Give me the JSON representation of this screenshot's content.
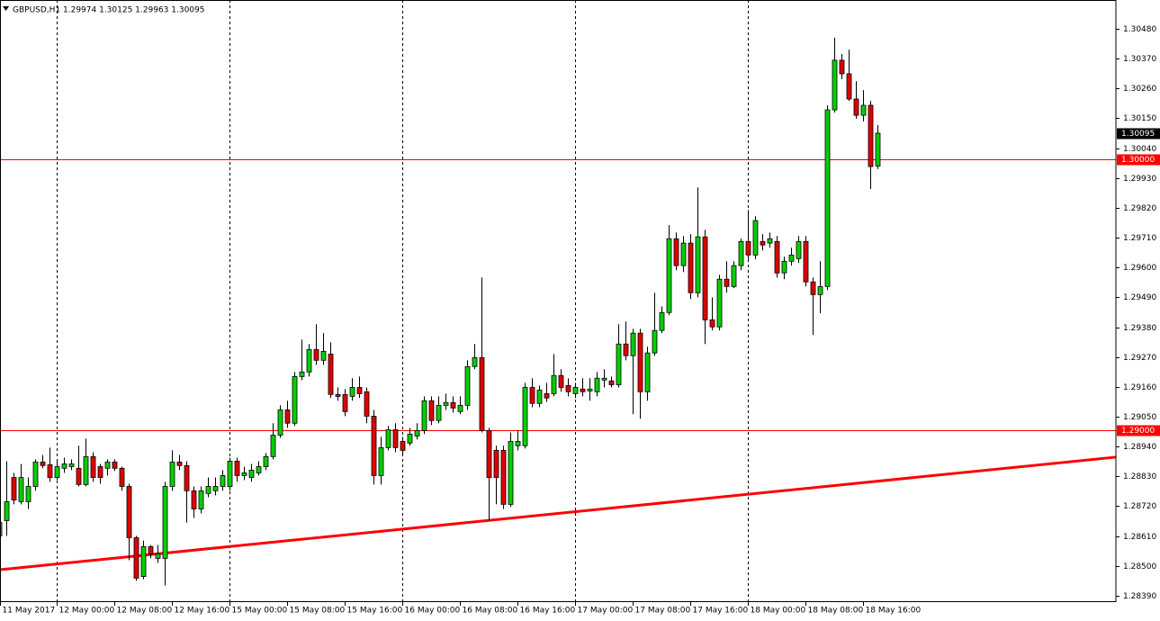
{
  "chart_data": {
    "type": "candlestick",
    "title": "GBPUSD,H1  1.29974 1.30125 1.29963 1.30095",
    "categories": [
      "11 May 2017",
      null,
      null,
      null,
      null,
      null,
      null,
      null,
      "12 May 00:00",
      null,
      null,
      null,
      null,
      null,
      null,
      null,
      "12 May 08:00",
      null,
      null,
      null,
      null,
      null,
      null,
      null,
      "12 May 16:00",
      null,
      null,
      null,
      null,
      null,
      null,
      null,
      "15 May 00:00",
      null,
      null,
      null,
      null,
      null,
      null,
      null,
      "15 May 08:00",
      null,
      null,
      null,
      null,
      null,
      null,
      null,
      "15 May 16:00",
      null,
      null,
      null,
      null,
      null,
      null,
      null,
      "16 May 00:00",
      null,
      null,
      null,
      null,
      null,
      null,
      null,
      "16 May 08:00",
      null,
      null,
      null,
      null,
      null,
      null,
      null,
      "16 May 16:00",
      null,
      null,
      null,
      null,
      null,
      null,
      null,
      "17 May 00:00",
      null,
      null,
      null,
      null,
      null,
      null,
      null,
      "17 May 08:00",
      null,
      null,
      null,
      null,
      null,
      null,
      null,
      "17 May 16:00",
      null,
      null,
      null,
      null,
      null,
      null,
      null,
      "18 May 00:00",
      null,
      null,
      null,
      null,
      null,
      null,
      null,
      "18 May 08:00",
      null,
      null,
      null,
      null,
      null,
      null,
      null,
      "18 May 16:00",
      null,
      null
    ],
    "open": [
      1.28611,
      1.28667,
      1.28826,
      1.28737,
      1.28737,
      1.28793,
      1.28883,
      1.28873,
      1.28826,
      1.2886,
      1.28866,
      1.2886,
      1.288,
      1.28903,
      1.28866,
      1.2886,
      1.28883,
      1.2886,
      1.28793,
      1.28604,
      1.28461,
      1.28571,
      1.28528,
      1.28528,
      1.28793,
      1.28883,
      1.2887,
      1.28777,
      1.2871,
      1.28767,
      1.28777,
      1.28793,
      1.28793,
      1.28886,
      1.28833,
      1.28826,
      1.28843,
      1.28866,
      1.28903,
      1.28982,
      1.29075,
      1.29026,
      1.29198,
      1.29215,
      1.29298,
      1.29258,
      1.29281,
      1.29132,
      1.29132,
      1.29125,
      1.29158,
      1.29142,
      1.29052,
      1.28833,
      1.28936,
      1.29002,
      1.28959,
      1.28953,
      1.28979,
      1.28999,
      1.29109,
      1.29036,
      1.29092,
      1.29102,
      1.29069,
      1.29092,
      1.29235,
      1.29268,
      1.28999,
      1.28926,
      1.28926,
      1.28727,
      1.28943,
      1.28943,
      1.29158,
      1.29099,
      1.29135,
      1.29135,
      1.29202,
      1.29165,
      1.29135,
      1.29152,
      1.29145,
      1.29142,
      1.29185,
      1.29182,
      1.29168,
      1.29318,
      1.29275,
      1.29358,
      1.29142,
      1.29285,
      1.29368,
      1.29434,
      1.29706,
      1.29607,
      1.2969,
      1.29507,
      1.29713,
      1.29407,
      1.29381,
      1.29557,
      1.2953,
      1.29607,
      1.29696,
      1.29646,
      1.29696,
      1.2969,
      1.29696,
      1.2958,
      1.29623,
      1.29633,
      1.29696,
      1.29547,
      1.295,
      1.2953,
      1.30181,
      1.30364,
      1.30314,
      1.30221,
      1.30161,
      1.30198,
      1.29974
    ],
    "high": [
      1.28687,
      1.28886,
      1.28843,
      1.28876,
      1.28826,
      1.28893,
      1.28909,
      1.28936,
      1.28886,
      1.28899,
      1.28893,
      1.28943,
      1.28969,
      1.28919,
      1.28876,
      1.28893,
      1.28893,
      1.28866,
      1.28803,
      1.28611,
      1.28594,
      1.28577,
      1.28577,
      1.2881,
      1.28926,
      1.28909,
      1.28886,
      1.28793,
      1.28793,
      1.28826,
      1.28826,
      1.28853,
      1.28899,
      1.28899,
      1.28866,
      1.28876,
      1.28886,
      1.28916,
      1.29026,
      1.29092,
      1.29109,
      1.29215,
      1.29334,
      1.29318,
      1.29391,
      1.29358,
      1.29324,
      1.29158,
      1.29152,
      1.29192,
      1.29198,
      1.29158,
      1.29075,
      1.28976,
      1.29016,
      1.29026,
      1.28976,
      1.29009,
      1.29026,
      1.29125,
      1.29125,
      1.29125,
      1.29135,
      1.29125,
      1.29125,
      1.29258,
      1.29318,
      1.29563,
      1.29009,
      1.28943,
      1.28943,
      1.28992,
      1.28999,
      1.29175,
      1.29192,
      1.29165,
      1.29175,
      1.29281,
      1.29225,
      1.29192,
      1.29175,
      1.29192,
      1.29192,
      1.29215,
      1.29225,
      1.29198,
      1.29391,
      1.29401,
      1.29374,
      1.29374,
      1.29308,
      1.29507,
      1.29457,
      1.29756,
      1.29729,
      1.29716,
      1.29723,
      1.29895,
      1.29739,
      1.2949,
      1.29573,
      1.29623,
      1.29623,
      1.29706,
      1.29812,
      1.29789,
      1.29723,
      1.29729,
      1.29716,
      1.2964,
      1.29673,
      1.29716,
      1.29716,
      1.29563,
      1.29623,
      1.30198,
      1.30447,
      1.30387,
      1.30403,
      1.30287,
      1.30254,
      1.30214,
      1.30125
    ],
    "low": [
      1.28594,
      1.28611,
      1.28727,
      1.28727,
      1.2871,
      1.28777,
      1.2886,
      1.2881,
      1.28816,
      1.28843,
      1.28853,
      1.28793,
      1.28793,
      1.2881,
      1.28803,
      1.28833,
      1.2885,
      1.28777,
      1.28521,
      1.28445,
      1.28451,
      1.28528,
      1.28511,
      1.28428,
      1.28777,
      1.28853,
      1.2866,
      1.28677,
      1.28694,
      1.28753,
      1.2876,
      1.28777,
      1.28777,
      1.2881,
      1.28816,
      1.2881,
      1.28833,
      1.28853,
      1.28893,
      1.28972,
      1.29009,
      1.29016,
      1.29185,
      1.29198,
      1.29241,
      1.29241,
      1.29119,
      1.29109,
      1.29052,
      1.29109,
      1.29119,
      1.29026,
      1.288,
      1.288,
      1.28926,
      1.28919,
      1.28909,
      1.28943,
      1.28966,
      1.28986,
      1.29019,
      1.29026,
      1.29075,
      1.29065,
      1.29059,
      1.29075,
      1.29225,
      1.28992,
      1.28667,
      1.28727,
      1.2871,
      1.28717,
      1.28926,
      1.28933,
      1.29085,
      1.29085,
      1.29105,
      1.29125,
      1.29142,
      1.29125,
      1.29119,
      1.29125,
      1.29109,
      1.29125,
      1.29158,
      1.29158,
      1.29158,
      1.29258,
      1.29059,
      1.29042,
      1.29109,
      1.29275,
      1.29358,
      1.29424,
      1.2959,
      1.29583,
      1.29484,
      1.2949,
      1.29318,
      1.29368,
      1.29368,
      1.29507,
      1.29524,
      1.2959,
      1.2963,
      1.2963,
      1.29663,
      1.29673,
      1.29563,
      1.29557,
      1.29607,
      1.29617,
      1.2953,
      1.29351,
      1.29431,
      1.29517,
      1.30171,
      1.30294,
      1.30214,
      1.30148,
      1.30138,
      1.29889,
      1.29963
    ],
    "close": [
      1.2866,
      1.28737,
      1.28743,
      1.28826,
      1.28793,
      1.28883,
      1.2887,
      1.28826,
      1.28866,
      1.28876,
      1.28876,
      1.288,
      1.28903,
      1.28826,
      1.28826,
      1.28883,
      1.2886,
      1.28793,
      1.28604,
      1.28455,
      1.28571,
      1.28544,
      1.28544,
      1.28793,
      1.28883,
      1.2887,
      1.28777,
      1.2871,
      1.28777,
      1.28793,
      1.28793,
      1.28833,
      1.28886,
      1.28833,
      1.28843,
      1.28853,
      1.28866,
      1.28903,
      1.28982,
      1.29075,
      1.29026,
      1.29198,
      1.29215,
      1.29298,
      1.29258,
      1.29291,
      1.29132,
      1.29125,
      1.29069,
      1.29158,
      1.29135,
      1.29052,
      1.28833,
      1.28936,
      1.29002,
      1.28936,
      1.28926,
      1.28986,
      1.28999,
      1.29109,
      1.29036,
      1.29092,
      1.29102,
      1.29082,
      1.29092,
      1.29235,
      1.29268,
      1.28999,
      1.28826,
      1.28826,
      1.28727,
      1.28959,
      1.28959,
      1.29158,
      1.29099,
      1.29148,
      1.29119,
      1.29202,
      1.29158,
      1.29142,
      1.29158,
      1.29142,
      1.29152,
      1.29192,
      1.29192,
      1.29168,
      1.29318,
      1.29275,
      1.29358,
      1.29142,
      1.29285,
      1.29368,
      1.29434,
      1.29706,
      1.29607,
      1.2969,
      1.29507,
      1.29713,
      1.29407,
      1.29381,
      1.29557,
      1.2953,
      1.29607,
      1.29696,
      1.29646,
      1.29773,
      1.29683,
      1.29706,
      1.2958,
      1.29623,
      1.29646,
      1.29696,
      1.29547,
      1.295,
      1.2953,
      1.30181,
      1.30364,
      1.30314,
      1.30221,
      1.30161,
      1.30198,
      1.29972,
      1.30095
    ],
    "up_color": "#00d000",
    "down_color": "#e00000",
    "wick_color": "#000000",
    "ylim": [
      1.2837,
      1.30586
    ],
    "yticks": [
      {
        "value": 1.3048,
        "label": "1.30480"
      },
      {
        "value": 1.3037,
        "label": "1.30370"
      },
      {
        "value": 1.3026,
        "label": "1.30260"
      },
      {
        "value": 1.3015,
        "label": "1.30150"
      },
      {
        "value": 1.3004,
        "label": "1.30040"
      },
      {
        "value": 1.2993,
        "label": "1.29930"
      },
      {
        "value": 1.2982,
        "label": "1.29820"
      },
      {
        "value": 1.2971,
        "label": "1.29710"
      },
      {
        "value": 1.296,
        "label": "1.29600"
      },
      {
        "value": 1.2949,
        "label": "1.29490"
      },
      {
        "value": 1.2938,
        "label": "1.29380"
      },
      {
        "value": 1.2927,
        "label": "1.29270"
      },
      {
        "value": 1.2916,
        "label": "1.29160"
      },
      {
        "value": 1.2905,
        "label": "1.29050"
      },
      {
        "value": 1.2894,
        "label": "1.28940"
      },
      {
        "value": 1.2883,
        "label": "1.28830"
      },
      {
        "value": 1.2872,
        "label": "1.28720"
      },
      {
        "value": 1.2861,
        "label": "1.28610"
      },
      {
        "value": 1.285,
        "label": "1.28500"
      },
      {
        "value": 1.2839,
        "label": "1.28390"
      }
    ],
    "hlines": [
      {
        "value": 1.3,
        "label": "1.30000"
      },
      {
        "value": 1.29,
        "label": "1.29000"
      }
    ],
    "hline_color": "#ff0000",
    "last_price": {
      "value": 1.30095,
      "label": "1.30095"
    },
    "trendline": {
      "start": 1.28486,
      "end": 1.28901,
      "color": "#ff0000"
    }
  }
}
